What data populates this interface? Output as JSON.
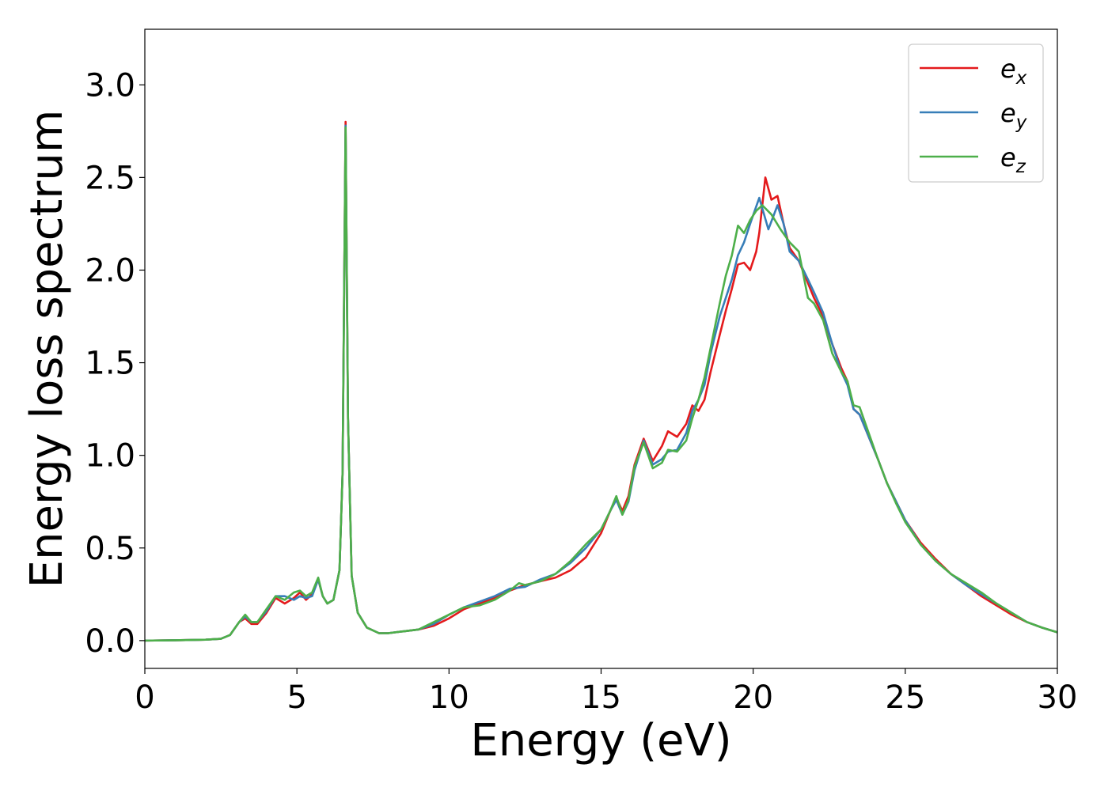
{
  "chart_data": {
    "type": "line",
    "xlabel": "Energy (eV)",
    "ylabel": "Energy loss spectrum",
    "xlim": [
      0,
      30
    ],
    "ylim": [
      -0.15,
      3.3
    ],
    "xticks": [
      0,
      5,
      10,
      15,
      20,
      25,
      30
    ],
    "xtick_labels": [
      "0",
      "5",
      "10",
      "15",
      "20",
      "25",
      "30"
    ],
    "yticks": [
      0.0,
      0.5,
      1.0,
      1.5,
      2.0,
      2.5,
      3.0
    ],
    "ytick_labels": [
      "0.0",
      "0.5",
      "1.0",
      "1.5",
      "2.0",
      "2.5",
      "3.0"
    ],
    "grid": false,
    "legend": {
      "position": "top-right",
      "entries": [
        {
          "base": "e",
          "sub": "x",
          "color": "#e41a1c"
        },
        {
          "base": "e",
          "sub": "y",
          "color": "#377eb8"
        },
        {
          "base": "e",
          "sub": "z",
          "color": "#4daf4a"
        }
      ]
    },
    "series": [
      {
        "color": "#e41a1c",
        "points": [
          [
            0,
            0
          ],
          [
            1,
            0.002
          ],
          [
            2,
            0.005
          ],
          [
            2.5,
            0.01
          ],
          [
            2.8,
            0.03
          ],
          [
            3.1,
            0.1
          ],
          [
            3.3,
            0.12
          ],
          [
            3.5,
            0.09
          ],
          [
            3.7,
            0.09
          ],
          [
            4,
            0.15
          ],
          [
            4.3,
            0.23
          ],
          [
            4.6,
            0.2
          ],
          [
            4.9,
            0.23
          ],
          [
            5.1,
            0.26
          ],
          [
            5.3,
            0.22
          ],
          [
            5.5,
            0.25
          ],
          [
            5.7,
            0.33
          ],
          [
            5.85,
            0.24
          ],
          [
            6,
            0.2
          ],
          [
            6.2,
            0.22
          ],
          [
            6.4,
            0.38
          ],
          [
            6.5,
            0.9
          ],
          [
            6.6,
            2.8
          ],
          [
            6.68,
            1.2
          ],
          [
            6.8,
            0.35
          ],
          [
            7,
            0.15
          ],
          [
            7.3,
            0.07
          ],
          [
            7.7,
            0.04
          ],
          [
            8,
            0.04
          ],
          [
            8.5,
            0.05
          ],
          [
            9,
            0.06
          ],
          [
            9.5,
            0.08
          ],
          [
            10,
            0.12
          ],
          [
            10.5,
            0.17
          ],
          [
            11,
            0.2
          ],
          [
            11.5,
            0.23
          ],
          [
            12,
            0.27
          ],
          [
            12.5,
            0.3
          ],
          [
            13,
            0.32
          ],
          [
            13.5,
            0.34
          ],
          [
            14,
            0.38
          ],
          [
            14.5,
            0.45
          ],
          [
            15,
            0.58
          ],
          [
            15.3,
            0.7
          ],
          [
            15.5,
            0.77
          ],
          [
            15.7,
            0.7
          ],
          [
            15.9,
            0.78
          ],
          [
            16.1,
            0.95
          ],
          [
            16.4,
            1.09
          ],
          [
            16.7,
            0.97
          ],
          [
            17,
            1.05
          ],
          [
            17.2,
            1.13
          ],
          [
            17.5,
            1.1
          ],
          [
            17.8,
            1.17
          ],
          [
            18,
            1.27
          ],
          [
            18.2,
            1.24
          ],
          [
            18.4,
            1.3
          ],
          [
            18.6,
            1.45
          ],
          [
            18.9,
            1.65
          ],
          [
            19.1,
            1.78
          ],
          [
            19.3,
            1.9
          ],
          [
            19.5,
            2.03
          ],
          [
            19.7,
            2.04
          ],
          [
            19.9,
            2.0
          ],
          [
            20.1,
            2.1
          ],
          [
            20.2,
            2.2
          ],
          [
            20.4,
            2.5
          ],
          [
            20.6,
            2.38
          ],
          [
            20.8,
            2.4
          ],
          [
            21,
            2.25
          ],
          [
            21.2,
            2.12
          ],
          [
            21.5,
            2.05
          ],
          [
            21.8,
            1.93
          ],
          [
            22,
            1.85
          ],
          [
            22.3,
            1.75
          ],
          [
            22.6,
            1.6
          ],
          [
            22.9,
            1.47
          ],
          [
            23.1,
            1.4
          ],
          [
            23.3,
            1.25
          ],
          [
            23.5,
            1.22
          ],
          [
            23.8,
            1.1
          ],
          [
            24.1,
            0.98
          ],
          [
            24.4,
            0.85
          ],
          [
            24.7,
            0.75
          ],
          [
            25,
            0.65
          ],
          [
            25.5,
            0.53
          ],
          [
            26,
            0.44
          ],
          [
            26.5,
            0.36
          ],
          [
            27,
            0.3
          ],
          [
            27.5,
            0.24
          ],
          [
            28,
            0.19
          ],
          [
            28.5,
            0.14
          ],
          [
            29,
            0.1
          ],
          [
            29.5,
            0.07
          ],
          [
            30,
            0.045
          ]
        ]
      },
      {
        "color": "#377eb8",
        "points": [
          [
            0,
            0
          ],
          [
            1,
            0.002
          ],
          [
            2,
            0.005
          ],
          [
            2.5,
            0.01
          ],
          [
            2.8,
            0.03
          ],
          [
            3.1,
            0.1
          ],
          [
            3.3,
            0.13
          ],
          [
            3.5,
            0.1
          ],
          [
            3.7,
            0.1
          ],
          [
            4,
            0.16
          ],
          [
            4.3,
            0.24
          ],
          [
            4.6,
            0.24
          ],
          [
            4.9,
            0.22
          ],
          [
            5.1,
            0.24
          ],
          [
            5.3,
            0.23
          ],
          [
            5.5,
            0.24
          ],
          [
            5.7,
            0.33
          ],
          [
            5.85,
            0.24
          ],
          [
            6,
            0.2
          ],
          [
            6.2,
            0.22
          ],
          [
            6.4,
            0.38
          ],
          [
            6.5,
            0.9
          ],
          [
            6.6,
            2.78
          ],
          [
            6.68,
            1.2
          ],
          [
            6.8,
            0.35
          ],
          [
            7,
            0.15
          ],
          [
            7.3,
            0.07
          ],
          [
            7.7,
            0.04
          ],
          [
            8,
            0.04
          ],
          [
            8.5,
            0.05
          ],
          [
            9,
            0.06
          ],
          [
            9.5,
            0.09
          ],
          [
            10,
            0.14
          ],
          [
            10.5,
            0.18
          ],
          [
            11,
            0.21
          ],
          [
            11.5,
            0.24
          ],
          [
            12,
            0.28
          ],
          [
            12.5,
            0.29
          ],
          [
            13,
            0.33
          ],
          [
            13.5,
            0.36
          ],
          [
            14,
            0.42
          ],
          [
            14.5,
            0.5
          ],
          [
            15,
            0.6
          ],
          [
            15.3,
            0.7
          ],
          [
            15.5,
            0.76
          ],
          [
            15.7,
            0.68
          ],
          [
            15.9,
            0.75
          ],
          [
            16.1,
            0.92
          ],
          [
            16.4,
            1.08
          ],
          [
            16.7,
            0.95
          ],
          [
            17,
            0.98
          ],
          [
            17.2,
            1.02
          ],
          [
            17.5,
            1.03
          ],
          [
            17.8,
            1.12
          ],
          [
            18,
            1.24
          ],
          [
            18.2,
            1.3
          ],
          [
            18.4,
            1.38
          ],
          [
            18.6,
            1.55
          ],
          [
            18.9,
            1.75
          ],
          [
            19.1,
            1.85
          ],
          [
            19.3,
            1.95
          ],
          [
            19.5,
            2.08
          ],
          [
            19.7,
            2.15
          ],
          [
            19.9,
            2.25
          ],
          [
            20.2,
            2.39
          ],
          [
            20.5,
            2.22
          ],
          [
            20.8,
            2.35
          ],
          [
            21,
            2.25
          ],
          [
            21.2,
            2.1
          ],
          [
            21.5,
            2.05
          ],
          [
            21.8,
            1.95
          ],
          [
            22,
            1.88
          ],
          [
            22.3,
            1.77
          ],
          [
            22.6,
            1.6
          ],
          [
            22.9,
            1.45
          ],
          [
            23.1,
            1.38
          ],
          [
            23.3,
            1.25
          ],
          [
            23.5,
            1.22
          ],
          [
            23.8,
            1.1
          ],
          [
            24.1,
            0.98
          ],
          [
            24.4,
            0.85
          ],
          [
            24.7,
            0.75
          ],
          [
            25,
            0.65
          ],
          [
            25.5,
            0.52
          ],
          [
            26,
            0.43
          ],
          [
            26.5,
            0.36
          ],
          [
            27,
            0.3
          ],
          [
            27.5,
            0.25
          ],
          [
            28,
            0.2
          ],
          [
            28.5,
            0.15
          ],
          [
            29,
            0.1
          ],
          [
            29.5,
            0.07
          ],
          [
            30,
            0.045
          ]
        ]
      },
      {
        "color": "#4daf4a",
        "points": [
          [
            0,
            0
          ],
          [
            1,
            0.002
          ],
          [
            2,
            0.005
          ],
          [
            2.5,
            0.01
          ],
          [
            2.8,
            0.03
          ],
          [
            3.1,
            0.1
          ],
          [
            3.3,
            0.14
          ],
          [
            3.5,
            0.1
          ],
          [
            3.7,
            0.1
          ],
          [
            4,
            0.17
          ],
          [
            4.3,
            0.24
          ],
          [
            4.6,
            0.22
          ],
          [
            4.9,
            0.26
          ],
          [
            5.1,
            0.27
          ],
          [
            5.3,
            0.24
          ],
          [
            5.5,
            0.26
          ],
          [
            5.7,
            0.34
          ],
          [
            5.85,
            0.24
          ],
          [
            6,
            0.2
          ],
          [
            6.2,
            0.22
          ],
          [
            6.4,
            0.38
          ],
          [
            6.5,
            0.9
          ],
          [
            6.6,
            2.77
          ],
          [
            6.68,
            1.2
          ],
          [
            6.8,
            0.35
          ],
          [
            7,
            0.15
          ],
          [
            7.3,
            0.07
          ],
          [
            7.7,
            0.04
          ],
          [
            8,
            0.04
          ],
          [
            8.5,
            0.05
          ],
          [
            9,
            0.06
          ],
          [
            9.5,
            0.1
          ],
          [
            10,
            0.14
          ],
          [
            10.5,
            0.18
          ],
          [
            11,
            0.19
          ],
          [
            11.5,
            0.22
          ],
          [
            12,
            0.27
          ],
          [
            12.3,
            0.31
          ],
          [
            12.5,
            0.3
          ],
          [
            13,
            0.32
          ],
          [
            13.5,
            0.36
          ],
          [
            14,
            0.43
          ],
          [
            14.5,
            0.52
          ],
          [
            15,
            0.6
          ],
          [
            15.3,
            0.7
          ],
          [
            15.5,
            0.78
          ],
          [
            15.7,
            0.68
          ],
          [
            15.9,
            0.76
          ],
          [
            16.1,
            0.94
          ],
          [
            16.4,
            1.07
          ],
          [
            16.7,
            0.93
          ],
          [
            17,
            0.96
          ],
          [
            17.2,
            1.03
          ],
          [
            17.5,
            1.02
          ],
          [
            17.8,
            1.08
          ],
          [
            18,
            1.2
          ],
          [
            18.2,
            1.3
          ],
          [
            18.4,
            1.42
          ],
          [
            18.6,
            1.58
          ],
          [
            18.9,
            1.82
          ],
          [
            19.1,
            1.97
          ],
          [
            19.3,
            2.08
          ],
          [
            19.5,
            2.24
          ],
          [
            19.7,
            2.2
          ],
          [
            19.9,
            2.27
          ],
          [
            20.1,
            2.32
          ],
          [
            20.3,
            2.35
          ],
          [
            20.6,
            2.3
          ],
          [
            20.9,
            2.22
          ],
          [
            21.2,
            2.15
          ],
          [
            21.5,
            2.1
          ],
          [
            21.8,
            1.85
          ],
          [
            22,
            1.82
          ],
          [
            22.3,
            1.73
          ],
          [
            22.6,
            1.55
          ],
          [
            22.9,
            1.45
          ],
          [
            23.1,
            1.4
          ],
          [
            23.3,
            1.27
          ],
          [
            23.5,
            1.26
          ],
          [
            23.8,
            1.12
          ],
          [
            24.1,
            0.98
          ],
          [
            24.4,
            0.85
          ],
          [
            24.7,
            0.74
          ],
          [
            25,
            0.64
          ],
          [
            25.5,
            0.52
          ],
          [
            26,
            0.43
          ],
          [
            26.5,
            0.36
          ],
          [
            27,
            0.31
          ],
          [
            27.5,
            0.26
          ],
          [
            28,
            0.2
          ],
          [
            28.5,
            0.15
          ],
          [
            29,
            0.1
          ],
          [
            29.5,
            0.07
          ],
          [
            30,
            0.045
          ]
        ]
      }
    ]
  }
}
